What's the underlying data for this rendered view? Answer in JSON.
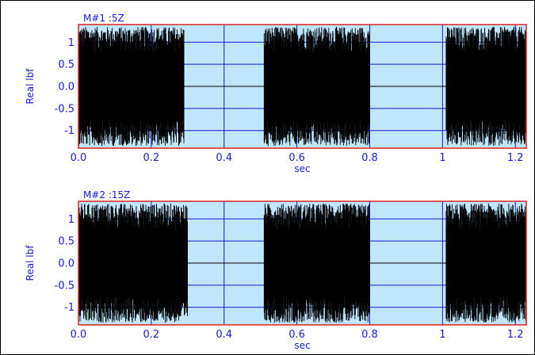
{
  "colors": {
    "plot_bg": "#bfe6fb",
    "plot_border": "#e02020",
    "grid": "#1a1acc",
    "signal": "#000000",
    "text": "#1a1ad6"
  },
  "chart_data": [
    {
      "type": "line",
      "title": "M#1 :5Z",
      "xlabel": "sec",
      "ylabel": "Real lbf",
      "xlim": [
        0,
        1.23
      ],
      "ylim": [
        -1.4,
        1.4
      ],
      "grid": true,
      "xticks": [
        0.0,
        0.2,
        0.4,
        0.6,
        0.8,
        1.0,
        1.2
      ],
      "xtick_labels": [
        "0.0",
        "0.2",
        "0.4",
        "0.6",
        "0.8",
        "1",
        "1.2"
      ],
      "yticks": [
        1,
        0.5,
        0.0,
        -0.5,
        -1
      ],
      "ytick_labels": [
        "1",
        "0.5",
        "0.0",
        "-0.5",
        "-1"
      ],
      "series": [
        {
          "style": "dense random-noise bursts",
          "bursts": [
            {
              "start": 0.0,
              "end": 0.29,
              "amplitude": 1.35
            },
            {
              "start": 0.51,
              "end": 0.8,
              "amplitude": 1.35
            },
            {
              "start": 1.01,
              "end": 1.23,
              "amplitude": 1.35
            }
          ]
        }
      ]
    },
    {
      "type": "line",
      "title": "M#2 :15Z",
      "xlabel": "sec",
      "ylabel": "Real lbf",
      "xlim": [
        0,
        1.23
      ],
      "ylim": [
        -1.4,
        1.4
      ],
      "grid": true,
      "xticks": [
        0.0,
        0.2,
        0.4,
        0.6,
        0.8,
        1.0,
        1.2
      ],
      "xtick_labels": [
        "0.0",
        "0.2",
        "0.4",
        "0.6",
        "0.8",
        "1",
        "1.2"
      ],
      "yticks": [
        1,
        0.5,
        0.0,
        -0.5,
        -1
      ],
      "ytick_labels": [
        "1",
        "0.5",
        "0.0",
        "-0.5",
        "-1"
      ],
      "series": [
        {
          "style": "dense random-noise bursts",
          "bursts": [
            {
              "start": 0.0,
              "end": 0.3,
              "amplitude": 1.35
            },
            {
              "start": 0.51,
              "end": 0.8,
              "amplitude": 1.35
            },
            {
              "start": 1.01,
              "end": 1.23,
              "amplitude": 1.35
            }
          ]
        }
      ]
    }
  ]
}
